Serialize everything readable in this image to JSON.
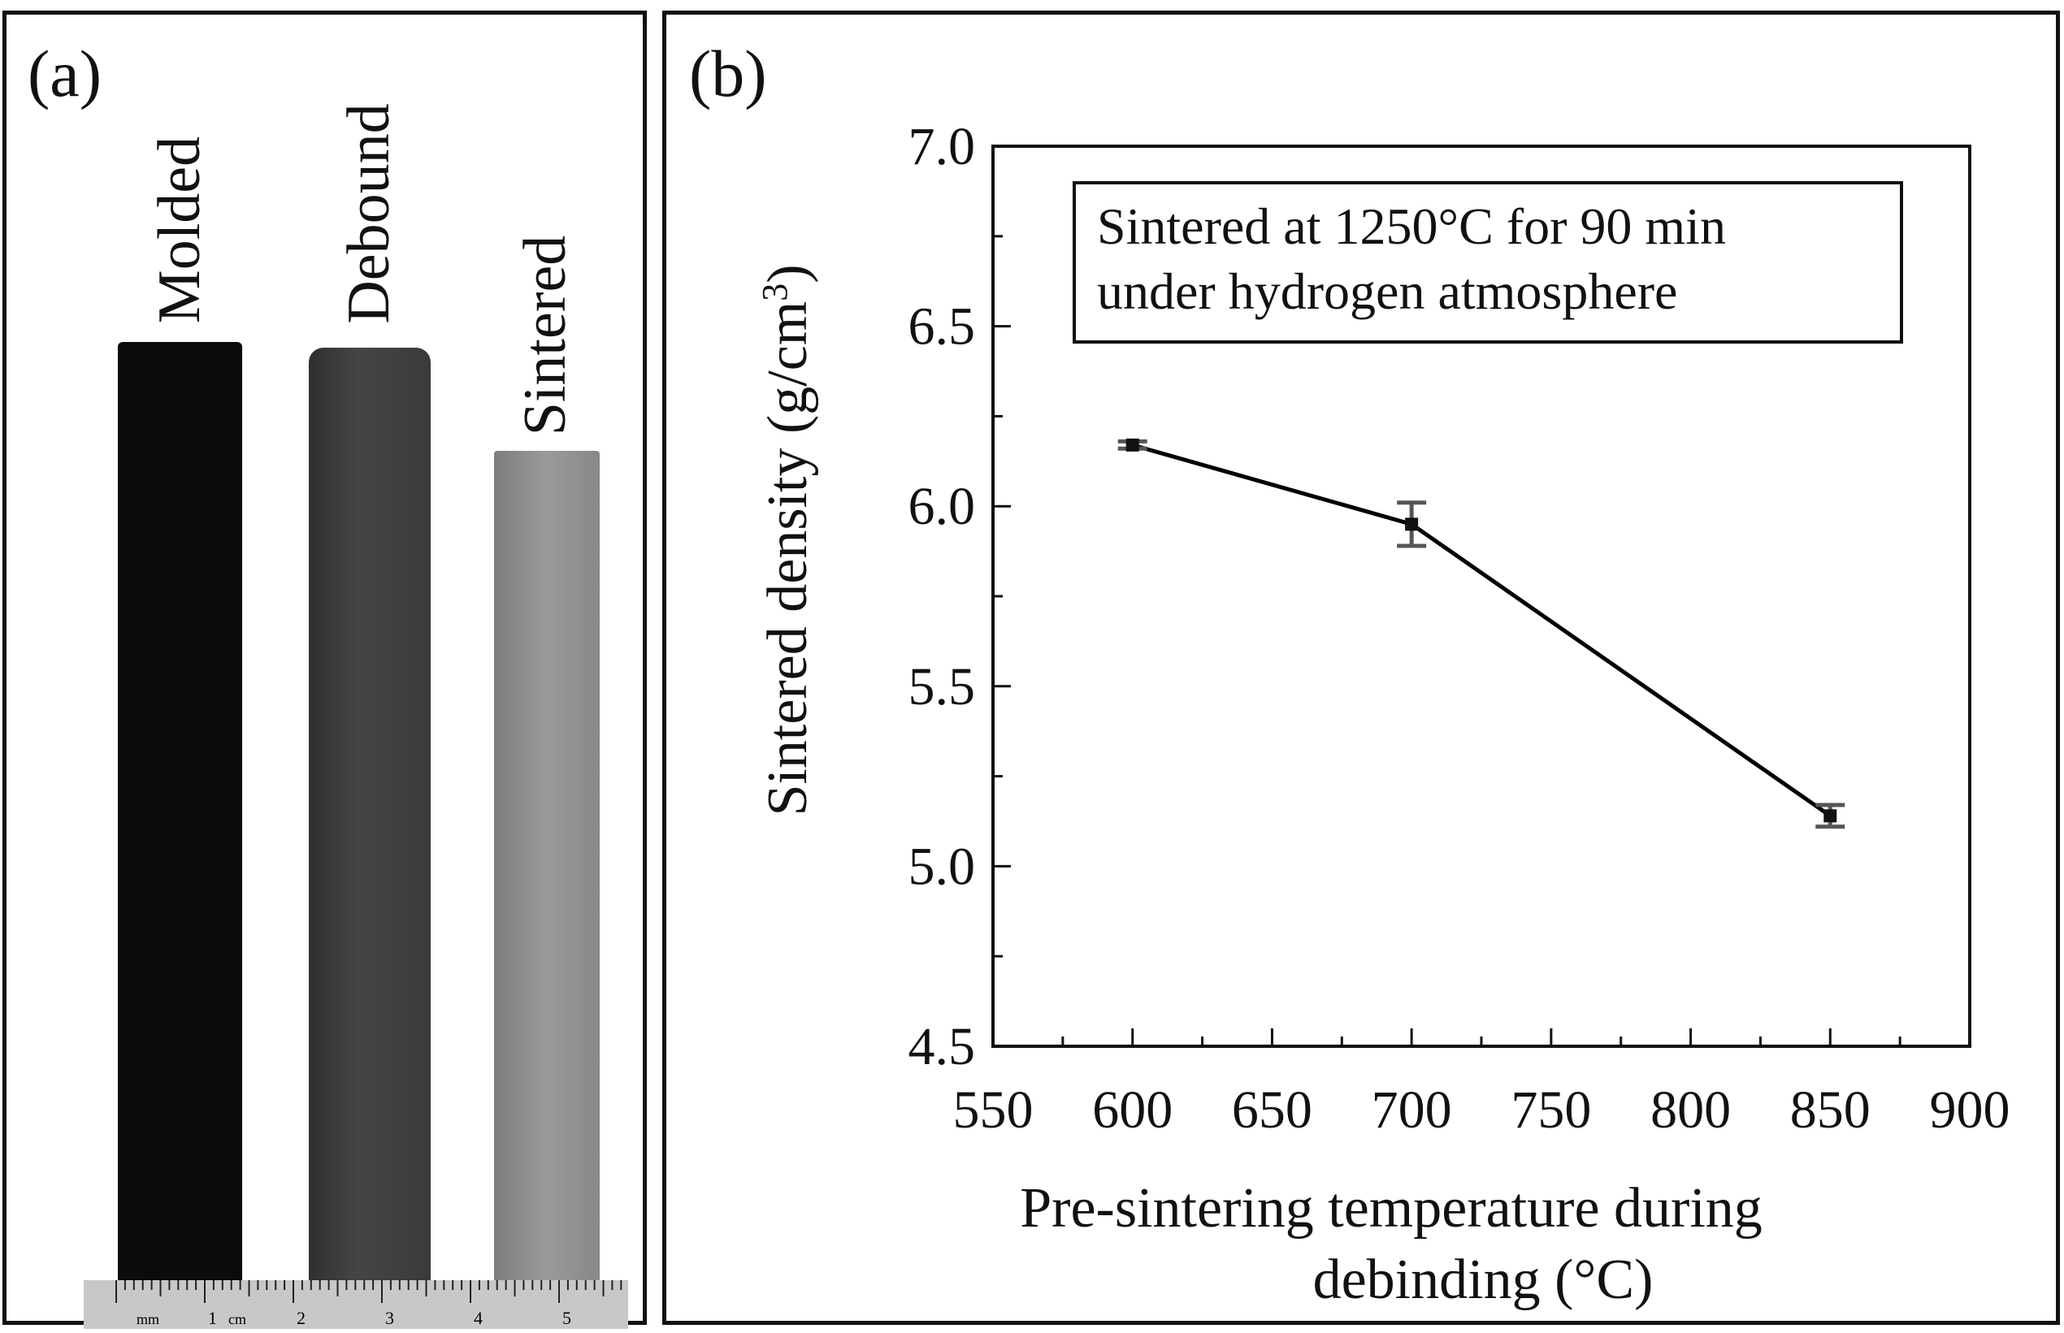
{
  "panel_a": {
    "label": "(a)",
    "samples": [
      {
        "name": "Molded",
        "color": "#0d0d0d"
      },
      {
        "name": "Debound",
        "color": "#3a3a3a"
      },
      {
        "name": "Sintered",
        "color": "#8c8c8c"
      }
    ],
    "ruler": {
      "unit_mm": "mm",
      "unit_cm": "cm",
      "numbers": [
        "1",
        "2",
        "3",
        "4",
        "5"
      ]
    }
  },
  "panel_b": {
    "label": "(b)"
  },
  "chart_data": {
    "type": "line",
    "x": [
      600,
      700,
      850
    ],
    "series": [
      {
        "name": "Sintered density",
        "values": [
          6.17,
          5.95,
          5.14
        ],
        "errors": [
          0.01,
          0.06,
          0.03
        ]
      }
    ],
    "xlabel": [
      "Pre-sintering temperature during",
      "debinding (°C)"
    ],
    "ylabel": "Sintered density (g/cm",
    "ylabel_sup": "3",
    "ylabel_end": ")",
    "xlim": [
      550,
      900
    ],
    "ylim": [
      4.5,
      7.0
    ],
    "xticks": [
      "550",
      "600",
      "650",
      "700",
      "750",
      "800",
      "850",
      "900"
    ],
    "yticks": [
      "4.5",
      "5.0",
      "5.5",
      "6.0",
      "6.5",
      "7.0"
    ],
    "annotation": [
      "Sintered at 1250°C for 90 min",
      "under hydrogen atmosphere"
    ],
    "grid": false,
    "line_color": "#000000",
    "errorbar_color": "#555555"
  }
}
